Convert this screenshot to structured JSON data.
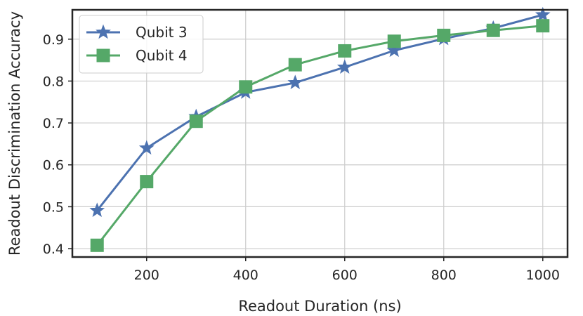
{
  "chart_data": {
    "type": "line",
    "title": "",
    "xlabel": "Readout Duration (ns)",
    "ylabel": "Readout Discrimination Accuracy",
    "xlim": [
      50,
      1050
    ],
    "ylim": [
      0.38,
      0.97
    ],
    "xticks": [
      200,
      400,
      600,
      800,
      1000
    ],
    "yticks": [
      0.4,
      0.5,
      0.6,
      0.7,
      0.8,
      0.9
    ],
    "grid": true,
    "legend_position": "top-left",
    "x": [
      100,
      200,
      300,
      400,
      500,
      600,
      700,
      800,
      900,
      1000
    ],
    "series": [
      {
        "name": "Qubit 3",
        "color": "#4c72b0",
        "marker": "star",
        "values": [
          0.491,
          0.64,
          0.715,
          0.773,
          0.796,
          0.833,
          0.873,
          0.901,
          0.926,
          0.958
        ]
      },
      {
        "name": "Qubit 4",
        "color": "#55a868",
        "marker": "square",
        "values": [
          0.408,
          0.56,
          0.704,
          0.786,
          0.839,
          0.872,
          0.895,
          0.909,
          0.921,
          0.932
        ]
      }
    ]
  }
}
